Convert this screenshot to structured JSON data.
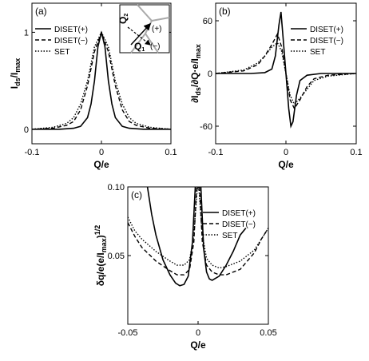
{
  "chart_data": [
    {
      "panel": "(a)",
      "type": "line",
      "xlabel": "Q/e",
      "ylabel_main": "I",
      "ylabel_sub1": "ds",
      "ylabel_mid": "/I",
      "ylabel_sub2": "max",
      "xlim": [
        -0.1,
        0.1
      ],
      "ylim": [
        -0.15,
        1.3
      ],
      "xticks": [
        "-0.1",
        "0",
        "0.1"
      ],
      "yticks": [
        "0",
        "1"
      ],
      "legend_position": "top-left",
      "series": [
        {
          "name": "DISET(+)",
          "style": "solid",
          "x": [
            -0.1,
            -0.06,
            -0.04,
            -0.03,
            -0.02,
            -0.015,
            -0.01,
            -0.005,
            0,
            0.005,
            0.01,
            0.015,
            0.02,
            0.03,
            0.04,
            0.06,
            0.1
          ],
          "y": [
            0,
            0,
            0.01,
            0.03,
            0.12,
            0.26,
            0.5,
            0.85,
            1.0,
            0.85,
            0.5,
            0.26,
            0.12,
            0.03,
            0.01,
            0,
            0
          ]
        },
        {
          "name": "DISET(−)",
          "style": "dashed",
          "x": [
            -0.1,
            -0.07,
            -0.05,
            -0.04,
            -0.03,
            -0.02,
            -0.01,
            0,
            0.01,
            0.02,
            0.03,
            0.04,
            0.05,
            0.07,
            0.1
          ],
          "y": [
            0,
            0.01,
            0.04,
            0.08,
            0.2,
            0.45,
            0.8,
            1.0,
            0.8,
            0.45,
            0.2,
            0.08,
            0.04,
            0.01,
            0
          ]
        },
        {
          "name": "SET",
          "style": "dotted",
          "x": [
            -0.1,
            -0.07,
            -0.05,
            -0.04,
            -0.03,
            -0.02,
            -0.01,
            0,
            0.01,
            0.02,
            0.03,
            0.04,
            0.05,
            0.07,
            0.1
          ],
          "y": [
            0,
            0.02,
            0.06,
            0.12,
            0.26,
            0.5,
            0.85,
            1.0,
            0.85,
            0.5,
            0.26,
            0.12,
            0.06,
            0.02,
            0
          ]
        }
      ],
      "inset": {
        "ylabel": "Q",
        "ysub": "2",
        "xlabel": "Q",
        "xsub": "1",
        "plus": "(+)",
        "minus": "(−)"
      }
    },
    {
      "panel": "(b)",
      "type": "line",
      "xlabel": "Q/e",
      "ylabel": "∂I",
      "ylabel_sub1": "ds",
      "ylabel_rest": "/∂Q·e/I",
      "ylabel_sub2": "max",
      "xlim": [
        -0.1,
        0.1
      ],
      "ylim": [
        -80,
        80
      ],
      "xticks": [
        "-0.1",
        "0",
        "0.1"
      ],
      "yticks": [
        "60",
        "0",
        "-60"
      ],
      "legend_position": "top-right",
      "series": [
        {
          "name": "DISET(+)",
          "style": "solid",
          "x": [
            -0.1,
            -0.05,
            -0.03,
            -0.02,
            -0.015,
            -0.01,
            -0.007,
            -0.004,
            0,
            0.004,
            0.007,
            0.01,
            0.015,
            0.02,
            0.03,
            0.05,
            0.1
          ],
          "y": [
            0,
            0,
            1,
            5,
            20,
            55,
            70,
            40,
            0,
            -40,
            -60,
            -55,
            -25,
            -8,
            -2,
            0,
            0
          ]
        },
        {
          "name": "DISET(−)",
          "style": "dashed",
          "x": [
            -0.1,
            -0.06,
            -0.04,
            -0.03,
            -0.02,
            -0.012,
            -0.006,
            0,
            0.006,
            0.012,
            0.02,
            0.03,
            0.04,
            0.06,
            0.1
          ],
          "y": [
            0,
            3,
            10,
            20,
            33,
            45,
            30,
            0,
            -30,
            -40,
            -30,
            -15,
            -6,
            -2,
            0
          ]
        },
        {
          "name": "SET",
          "style": "dotted",
          "x": [
            -0.1,
            -0.06,
            -0.04,
            -0.03,
            -0.02,
            -0.012,
            -0.006,
            0,
            0.006,
            0.012,
            0.02,
            0.03,
            0.04,
            0.06,
            0.1
          ],
          "y": [
            0,
            4,
            12,
            20,
            30,
            35,
            25,
            0,
            -25,
            -35,
            -28,
            -18,
            -8,
            -3,
            0
          ]
        }
      ]
    },
    {
      "panel": "(c)",
      "type": "line",
      "xlabel": "Q/e",
      "ylabel": "δq/e(e/I",
      "ylabel_sub": "max",
      "ylabel_end": ")",
      "ylabel_sup": "1/2",
      "xlim": [
        -0.05,
        0.05
      ],
      "ylim": [
        0,
        0.1
      ],
      "xticks": [
        "-0.05",
        "0",
        "0.05"
      ],
      "yticks": [
        "0.10",
        "0.05"
      ],
      "legend_position": "top-right",
      "series": [
        {
          "name": "DISET(+)",
          "style": "solid",
          "segments": [
            {
              "x": [
                -0.036,
                -0.033,
                -0.03,
                -0.025,
                -0.02,
                -0.016,
                -0.013,
                -0.01,
                -0.007,
                -0.004,
                -0.002
              ],
              "y": [
                0.1,
                0.08,
                0.065,
                0.047,
                0.036,
                0.03,
                0.028,
                0.029,
                0.035,
                0.06,
                0.1
              ]
            },
            {
              "x": [
                0.002,
                0.004,
                0.006,
                0.008,
                0.01,
                0.015,
                0.02,
                0.025,
                0.03,
                0.034
              ],
              "y": [
                0.1,
                0.055,
                0.038,
                0.033,
                0.032,
                0.035,
                0.043,
                0.053,
                0.065,
                0.07
              ]
            }
          ]
        },
        {
          "name": "DISET(−)",
          "style": "dashed",
          "segments": [
            {
              "x": [
                -0.05,
                -0.045,
                -0.04,
                -0.03,
                -0.02,
                -0.015,
                -0.01,
                -0.006,
                -0.003,
                -0.001
              ],
              "y": [
                0.074,
                0.064,
                0.056,
                0.046,
                0.039,
                0.036,
                0.036,
                0.04,
                0.06,
                0.1
              ]
            },
            {
              "x": [
                0.001,
                0.003,
                0.006,
                0.01,
                0.015,
                0.02,
                0.03,
                0.04,
                0.045,
                0.05
              ],
              "y": [
                0.1,
                0.06,
                0.043,
                0.038,
                0.036,
                0.036,
                0.04,
                0.052,
                0.062,
                0.07
              ]
            }
          ]
        },
        {
          "name": "SET",
          "style": "dotted",
          "segments": [
            {
              "x": [
                -0.05,
                -0.045,
                -0.04,
                -0.03,
                -0.02,
                -0.015,
                -0.01,
                -0.006,
                -0.003,
                -0.0005
              ],
              "y": [
                0.078,
                0.068,
                0.062,
                0.053,
                0.046,
                0.043,
                0.043,
                0.047,
                0.065,
                0.1
              ]
            },
            {
              "x": [
                0.0005,
                0.003,
                0.006,
                0.01,
                0.015,
                0.02,
                0.03,
                0.04,
                0.045,
                0.05
              ],
              "y": [
                0.1,
                0.065,
                0.048,
                0.043,
                0.041,
                0.042,
                0.046,
                0.054,
                0.062,
                0.07
              ]
            }
          ]
        }
      ]
    }
  ]
}
